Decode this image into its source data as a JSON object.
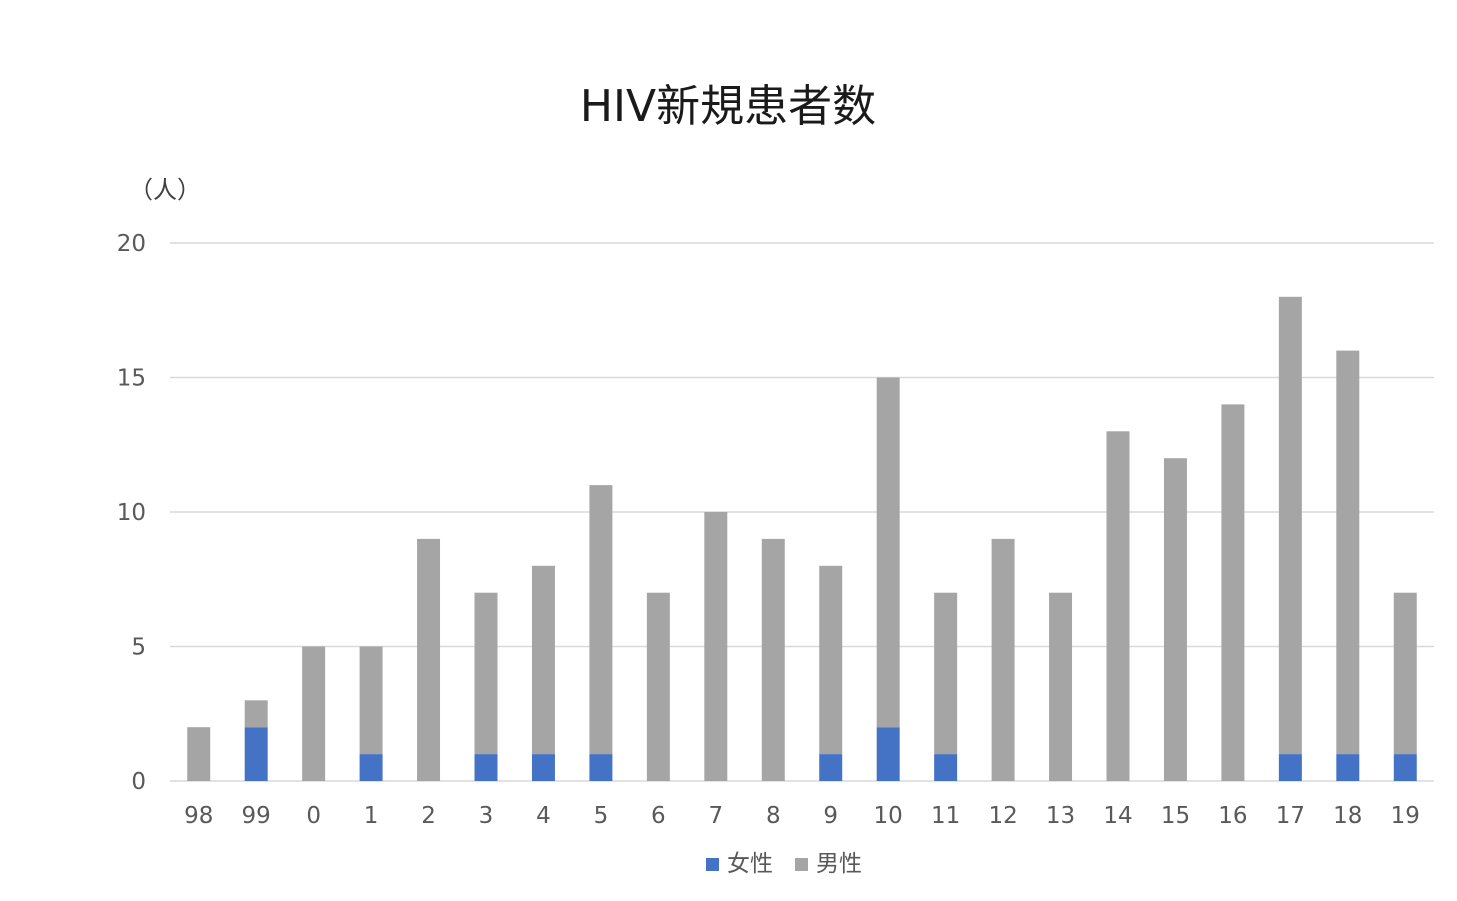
{
  "chart_data": {
    "type": "bar",
    "stacked": true,
    "title": "HIV新規患者数",
    "ylabel": "（人）",
    "xlabel": "",
    "ylim": [
      0,
      20
    ],
    "yticks": [
      0,
      5,
      10,
      15,
      20
    ],
    "grid": true,
    "legend_position": "bottom",
    "categories": [
      "98",
      "99",
      "0",
      "1",
      "2",
      "3",
      "4",
      "5",
      "6",
      "7",
      "8",
      "9",
      "10",
      "11",
      "12",
      "13",
      "14",
      "15",
      "16",
      "17",
      "18",
      "19"
    ],
    "series": [
      {
        "name": "女性",
        "color": "#4472c4",
        "values": [
          0,
          2,
          0,
          1,
          0,
          1,
          1,
          1,
          0,
          0,
          0,
          1,
          2,
          1,
          0,
          0,
          0,
          0,
          0,
          1,
          1,
          1
        ]
      },
      {
        "name": "男性",
        "color": "#a5a5a5",
        "values": [
          2,
          1,
          5,
          4,
          9,
          6,
          7,
          10,
          7,
          10,
          9,
          7,
          13,
          6,
          9,
          7,
          13,
          12,
          14,
          17,
          15,
          6
        ]
      }
    ]
  }
}
